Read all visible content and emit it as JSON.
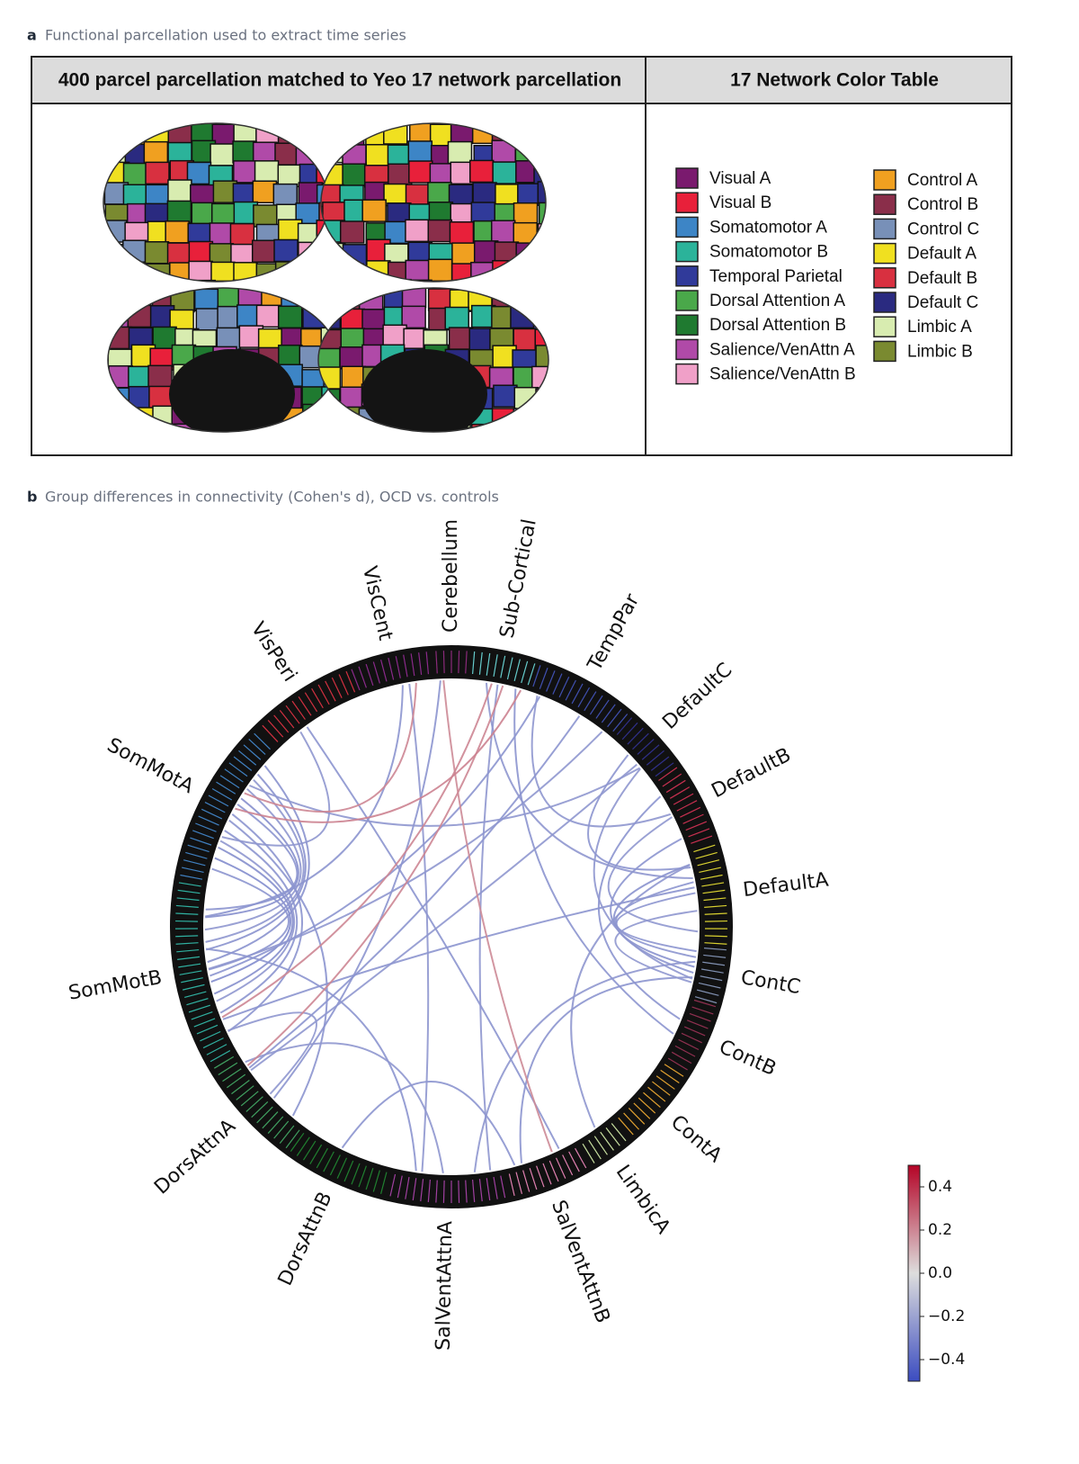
{
  "panel_a": {
    "label": "a",
    "caption": "Functional parcellation used to extract time series",
    "table": {
      "headers": [
        "400 parcel parcellation matched to Yeo 17 network parcellation",
        "17 Network Color Table"
      ],
      "legend": [
        {
          "name": "Visual A",
          "color": "#7a1a6e"
        },
        {
          "name": "Visual B",
          "color": "#e8203a"
        },
        {
          "name": "Somatomotor A",
          "color": "#3d85c6"
        },
        {
          "name": "Somatomotor B",
          "color": "#2bb39a"
        },
        {
          "name": "Temporal Parietal",
          "color": "#303a9a"
        },
        {
          "name": "Dorsal Attention A",
          "color": "#4aa84a"
        },
        {
          "name": "Dorsal Attention B",
          "color": "#1f7a30"
        },
        {
          "name": "Salience/VenAttn A",
          "color": "#b04aa8"
        },
        {
          "name": "Salience/VenAttn B",
          "color": "#f0a0c8"
        },
        {
          "name": "Control A",
          "color": "#f0a020"
        },
        {
          "name": "Control B",
          "color": "#8a2e4a"
        },
        {
          "name": "Control C",
          "color": "#7890b8"
        },
        {
          "name": "Default A",
          "color": "#f0e020"
        },
        {
          "name": "Default B",
          "color": "#d83040"
        },
        {
          "name": "Default C",
          "color": "#2a2a80"
        },
        {
          "name": "Limbic A",
          "color": "#d8ecb0"
        },
        {
          "name": "Limbic B",
          "color": "#7a8a30"
        }
      ]
    }
  },
  "chart_data": {
    "type": "chord",
    "label": "b",
    "title": "Group differences in connectivity (Cohen's d), OCD vs. controls",
    "networks": [
      {
        "name": "Cerebellum",
        "color": "#8a2a7a"
      },
      {
        "name": "Sub-Cortical",
        "color": "#66cccc"
      },
      {
        "name": "TempPar",
        "color": "#4050b0"
      },
      {
        "name": "DefaultC",
        "color": "#30308a"
      },
      {
        "name": "DefaultB",
        "color": "#c83050"
      },
      {
        "name": "DefaultA",
        "color": "#d8d030"
      },
      {
        "name": "ContC",
        "color": "#8090b0"
      },
      {
        "name": "ContB",
        "color": "#903050"
      },
      {
        "name": "ContA",
        "color": "#e0a030"
      },
      {
        "name": "LimbicA",
        "color": "#c8e0a0"
      },
      {
        "name": "SalVentAttnB",
        "color": "#e080b0"
      },
      {
        "name": "SalVentAttnA",
        "color": "#a040a0"
      },
      {
        "name": "DorsAttnB",
        "color": "#208030"
      },
      {
        "name": "DorsAttnA",
        "color": "#40a060"
      },
      {
        "name": "SomMotB",
        "color": "#30b0a0"
      },
      {
        "name": "SomMotA",
        "color": "#4080c0"
      },
      {
        "name": "VisPeri",
        "color": "#d03040"
      },
      {
        "name": "VisCent",
        "color": "#8a2a8a"
      }
    ],
    "connections": [
      {
        "source": "SomMotA",
        "target": "SomMotB",
        "d": -0.25
      },
      {
        "source": "SomMotA",
        "target": "SomMotB",
        "d": -0.27
      },
      {
        "source": "SomMotA",
        "target": "SomMotB",
        "d": -0.24
      },
      {
        "source": "SomMotA",
        "target": "SomMotB",
        "d": -0.26
      },
      {
        "source": "SomMotA",
        "target": "SomMotB",
        "d": -0.25
      },
      {
        "source": "SomMotA",
        "target": "SomMotB",
        "d": -0.28
      },
      {
        "source": "SomMotA",
        "target": "SomMotB",
        "d": -0.24
      },
      {
        "source": "SomMotA",
        "target": "SomMotB",
        "d": -0.25
      },
      {
        "source": "SomMotA",
        "target": "SomMotB",
        "d": -0.26
      },
      {
        "source": "SomMotA",
        "target": "SomMotB",
        "d": -0.25
      },
      {
        "source": "SomMotA",
        "target": "SomMotB",
        "d": -0.27
      },
      {
        "source": "SomMotA",
        "target": "SomMotB",
        "d": -0.24
      },
      {
        "source": "SomMotA",
        "target": "DorsAttnA",
        "d": -0.25
      },
      {
        "source": "SomMotB",
        "target": "DorsAttnA",
        "d": -0.24
      },
      {
        "source": "SomMotB",
        "target": "SalVentAttnA",
        "d": -0.25
      },
      {
        "source": "SomMotA",
        "target": "VisPeri",
        "d": -0.24
      },
      {
        "source": "SomMotB",
        "target": "VisCent",
        "d": -0.25
      },
      {
        "source": "SomMotB",
        "target": "TempPar",
        "d": -0.24
      },
      {
        "source": "SomMotB",
        "target": "DefaultA",
        "d": -0.25
      },
      {
        "source": "SomMotA",
        "target": "DefaultC",
        "d": -0.24
      },
      {
        "source": "Sub-Cortical",
        "target": "SomMotB",
        "d": 0.2
      },
      {
        "source": "Sub-Cortical",
        "target": "SomMotA",
        "d": 0.21
      },
      {
        "source": "Sub-Cortical",
        "target": "DorsAttnA",
        "d": 0.2
      },
      {
        "source": "Cerebellum",
        "target": "SalVentAttnB",
        "d": 0.19
      },
      {
        "source": "VisCent",
        "target": "SomMotA",
        "d": 0.2
      },
      {
        "source": "DefaultA",
        "target": "ContC",
        "d": -0.25
      },
      {
        "source": "DefaultA",
        "target": "ContC",
        "d": -0.26
      },
      {
        "source": "DefaultA",
        "target": "ContC",
        "d": -0.24
      },
      {
        "source": "DefaultA",
        "target": "ContC",
        "d": -0.25
      },
      {
        "source": "DefaultB",
        "target": "ContC",
        "d": -0.25
      },
      {
        "source": "DefaultB",
        "target": "DefaultA",
        "d": -0.24
      },
      {
        "source": "DefaultB",
        "target": "ContB",
        "d": -0.25
      },
      {
        "source": "DefaultC",
        "target": "ContC",
        "d": -0.24
      },
      {
        "source": "DefaultC",
        "target": "DefaultA",
        "d": -0.25
      },
      {
        "source": "TempPar",
        "target": "DefaultB",
        "d": -0.24
      },
      {
        "source": "TempPar",
        "target": "DorsAttnA",
        "d": -0.25
      },
      {
        "source": "Sub-Cortical",
        "target": "DefaultA",
        "d": -0.24
      },
      {
        "source": "Sub-Cortical",
        "target": "ContB",
        "d": -0.25
      },
      {
        "source": "Sub-Cortical",
        "target": "SalVentAttnA",
        "d": -0.24
      },
      {
        "source": "Cerebellum",
        "target": "DorsAttnA",
        "d": -0.25
      },
      {
        "source": "VisCent",
        "target": "SalVentAttnA",
        "d": -0.24
      },
      {
        "source": "VisPeri",
        "target": "SalVentAttnB",
        "d": -0.25
      },
      {
        "source": "DorsAttnA",
        "target": "SalVentAttnA",
        "d": -0.24
      },
      {
        "source": "DorsAttnB",
        "target": "SalVentAttnB",
        "d": -0.25
      },
      {
        "source": "SalVentAttnA",
        "target": "ContC",
        "d": -0.24
      },
      {
        "source": "SalVentAttnB",
        "target": "ContC",
        "d": -0.25
      },
      {
        "source": "LimbicA",
        "target": "DefaultA",
        "d": -0.24
      },
      {
        "source": "TempPar",
        "target": "SomMotB",
        "d": -0.25
      },
      {
        "source": "DefaultC",
        "target": "DorsAttnA",
        "d": -0.24
      }
    ],
    "colorbar": {
      "lim": [
        -0.5,
        0.5
      ],
      "ticks": [
        {
          "value": 0.4,
          "label": "0.4"
        },
        {
          "value": 0.2,
          "label": "0.2"
        },
        {
          "value": 0,
          "label": "0.0"
        },
        {
          "value": -0.2,
          "label": "−0.2"
        },
        {
          "value": -0.4,
          "label": "−0.4"
        }
      ]
    }
  }
}
